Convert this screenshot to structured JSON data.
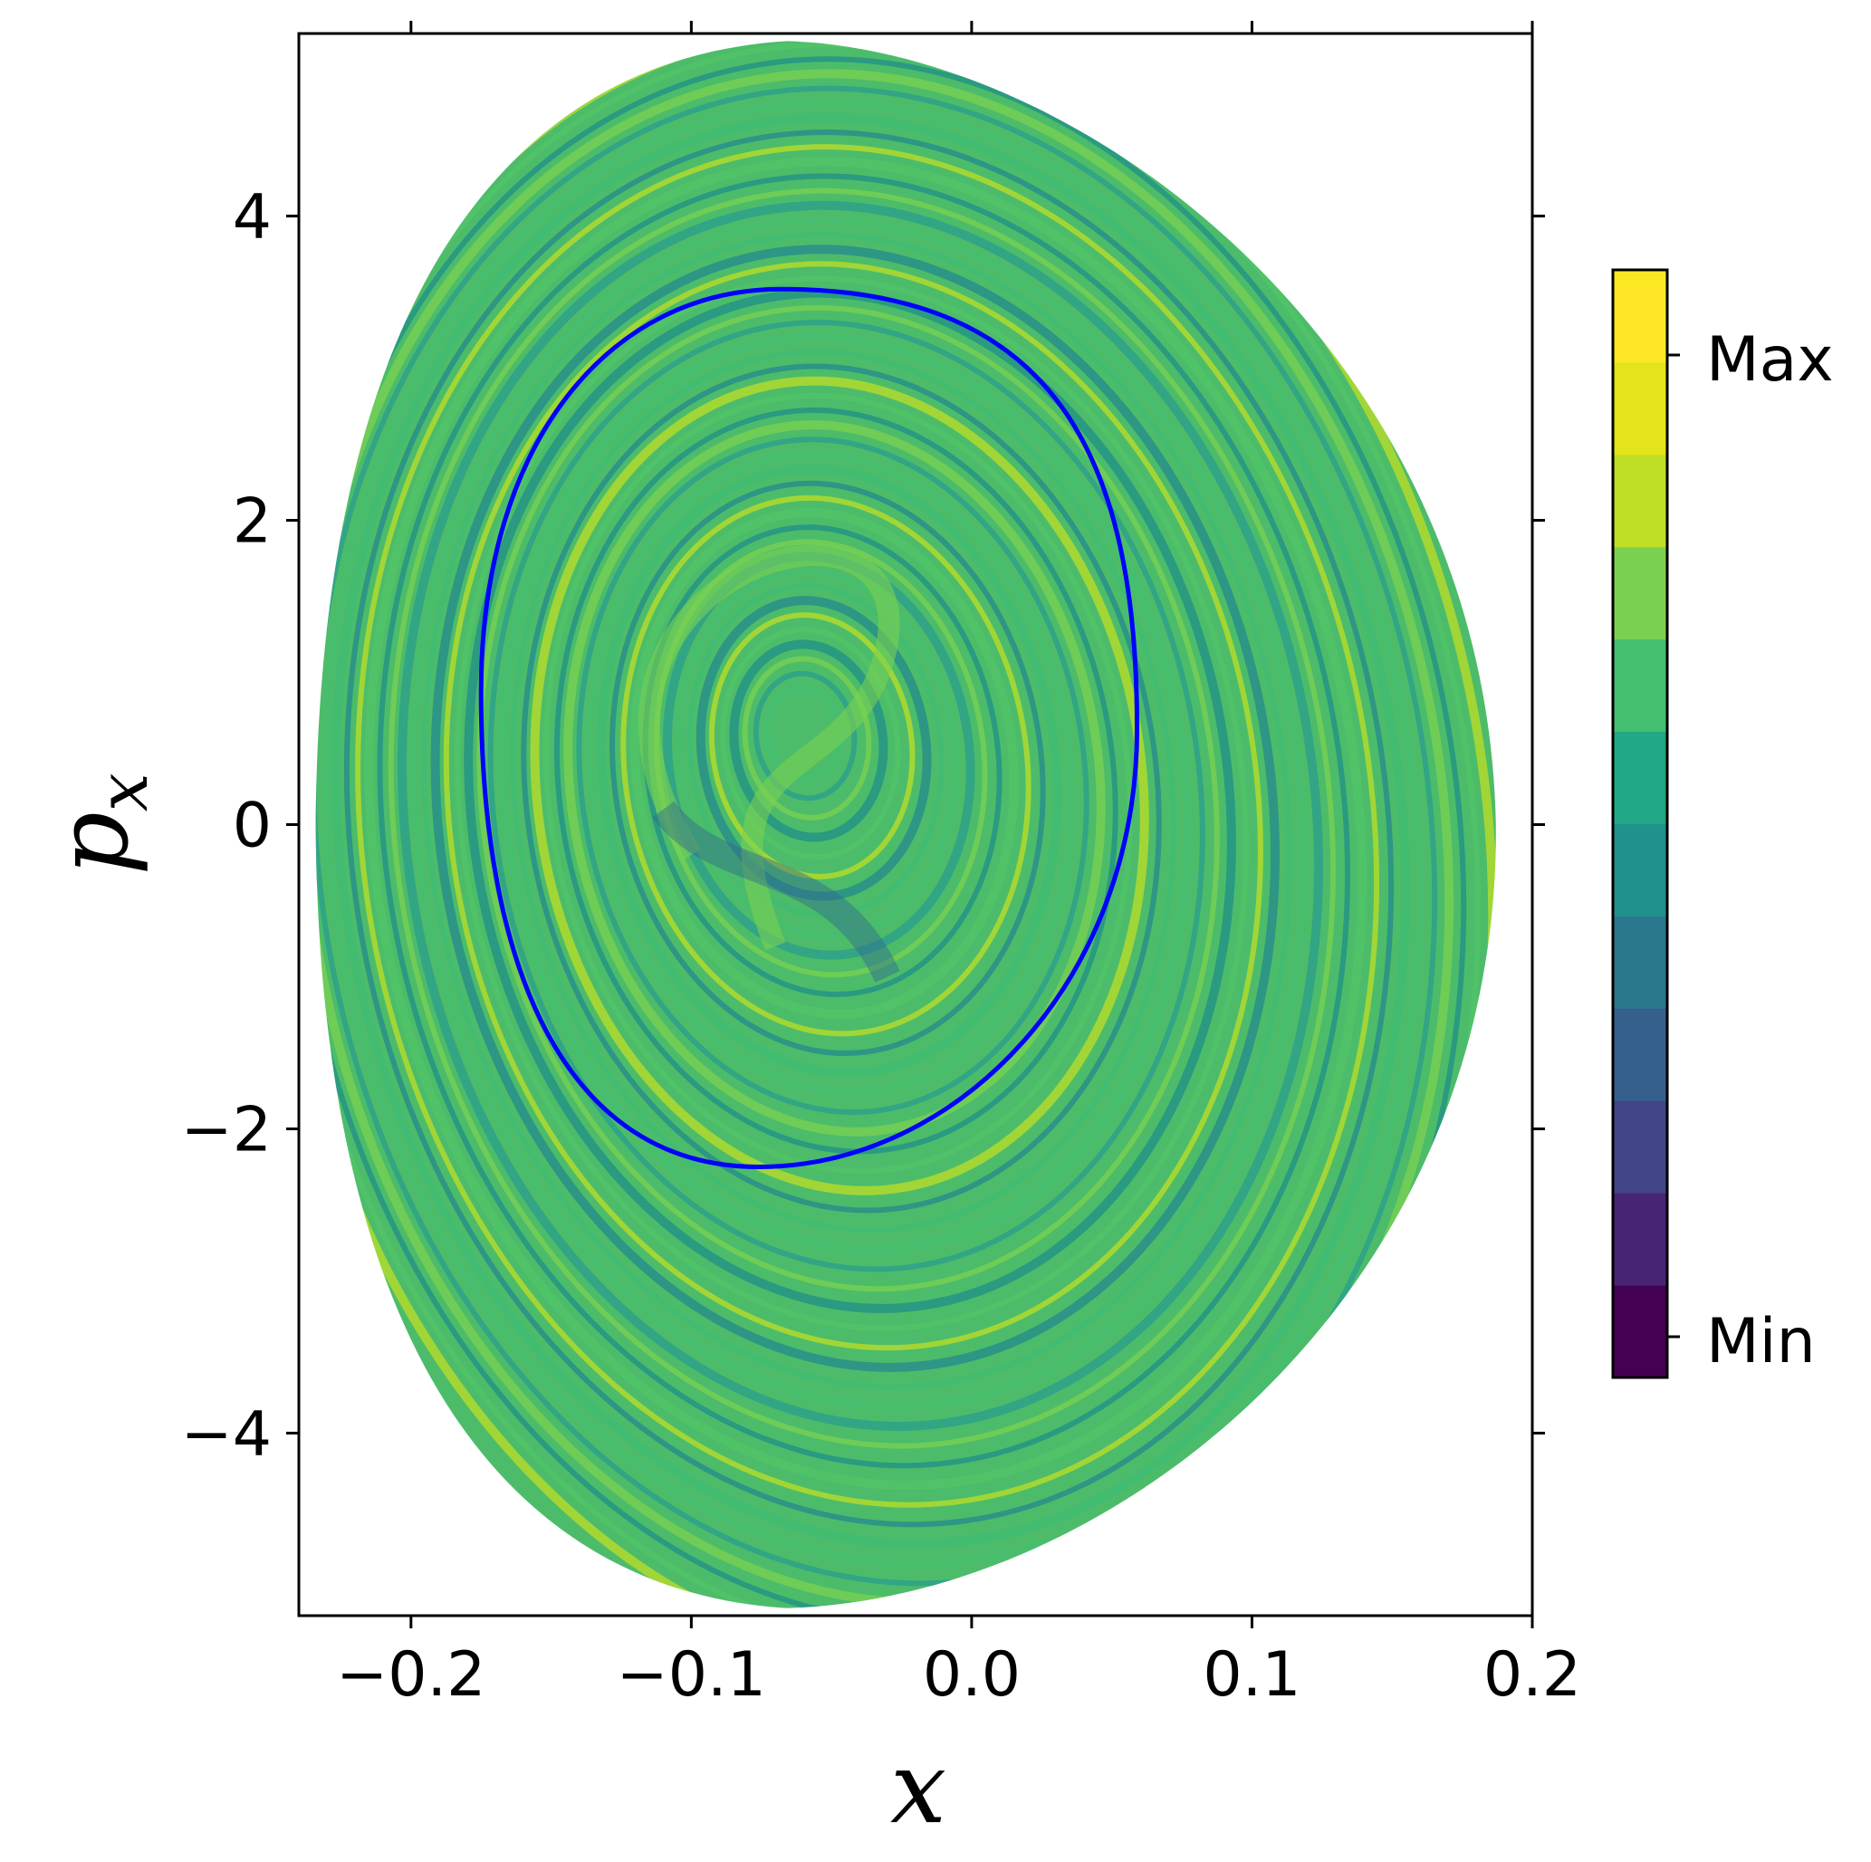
{
  "chart_data": {
    "type": "heatmap",
    "description_kind": "phase-space map with colorbar",
    "xlabel": "x",
    "ylabel": "p",
    "ylabel_subscript": "x",
    "xlim": [
      -0.24,
      0.2
    ],
    "ylim": [
      -5.2,
      5.2
    ],
    "x_ticks": [
      -0.2,
      -0.1,
      0.0,
      0.1,
      0.2
    ],
    "x_tick_labels": [
      "−0.2",
      "−0.1",
      "0.0",
      "0.1",
      "0.2"
    ],
    "y_ticks": [
      -4,
      -2,
      0,
      2,
      4
    ],
    "y_tick_labels": [
      "−4",
      "−2",
      "0",
      "2",
      "4"
    ],
    "region_boundary": {
      "x_min": -0.234,
      "x_max": 0.187,
      "p_min": -5.15,
      "p_max": 5.15,
      "x_at_p_max": -0.066,
      "x_at_p_min": -0.066,
      "fill_color": "#4cbc6a"
    },
    "curve": {
      "color": "#0000ff",
      "center_x": -0.058,
      "center_p": 0.63,
      "x_min": -0.175,
      "x_max": 0.059,
      "p_min": -2.25,
      "p_max": 3.52
    },
    "colorbar": {
      "tick_labels": [
        "Max",
        "Min"
      ],
      "levels": [
        "#440154",
        "#482878",
        "#3e4989",
        "#31688e",
        "#26828e",
        "#1f9e89",
        "#35b779",
        "#6ece58",
        "#b5de2b",
        "#fde725"
      ],
      "viridis_13": [
        "#440154",
        "#482475",
        "#414487",
        "#355f8d",
        "#2a788e",
        "#21918c",
        "#22a884",
        "#44bf70",
        "#7ad151",
        "#bddf26",
        "#e3e419",
        "#fde725"
      ]
    },
    "band_colors": [
      "#44bf70",
      "#2a9d8f",
      "#7ad151",
      "#1f8f8a",
      "#52c569",
      "#bddf26",
      "#238a8d",
      "#3fbc73"
    ]
  }
}
